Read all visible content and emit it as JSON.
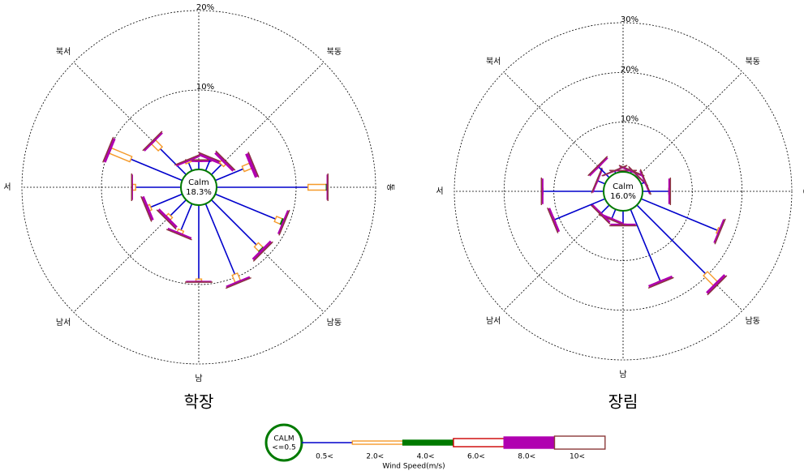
{
  "chart_data": [
    {
      "type": "windrose",
      "title": "학장",
      "calm": {
        "label": "Calm",
        "value": 18.3,
        "value_label": "18.3%"
      },
      "rlim": [
        0,
        20
      ],
      "rticks": [
        {
          "value": 10,
          "label": "10%"
        },
        {
          "value": 20,
          "label": "20%"
        }
      ],
      "direction_labels": [
        null,
        "북동",
        "동",
        "남동",
        "남",
        "남서",
        "서",
        "북서"
      ],
      "series": [
        {
          "values": [
            1.0,
            1.5,
            1.8,
            3.8,
            11.5,
            8.2,
            8.0,
            9.6,
            9.3,
            3.6,
            2.8,
            4.3,
            5.7,
            7.0,
            4.6,
            1.1
          ]
        },
        {
          "values": [
            0,
            0,
            0.4,
            1.0,
            2.3,
            0.8,
            0.8,
            1.0,
            0.3,
            0.4,
            0.4,
            0.3,
            0.4,
            2.8,
            1.2,
            0.2
          ]
        },
        {
          "values": [
            0,
            0,
            0,
            0,
            0.1,
            0.2,
            0.1,
            0,
            0,
            0,
            0,
            0,
            0,
            0,
            0,
            0
          ]
        },
        {
          "values": [
            0,
            0,
            0,
            0,
            0,
            0,
            0,
            0,
            0,
            0,
            0,
            0,
            0,
            0,
            0,
            0
          ]
        },
        {
          "values": [
            0.2,
            0.3,
            0.3,
            0.4,
            0.1,
            0.2,
            0.3,
            0.2,
            0.1,
            0.2,
            0.3,
            0.3,
            0.1,
            0.3,
            0.2,
            0.2
          ]
        },
        {
          "values": [
            0,
            0,
            0,
            0,
            0,
            0,
            0,
            0,
            0,
            0,
            0,
            0,
            0,
            0,
            0,
            0
          ]
        }
      ]
    },
    {
      "type": "windrose",
      "title": "장림",
      "calm": {
        "label": "Calm",
        "value": 16.0,
        "value_label": "16.0%"
      },
      "rlim": [
        0,
        30
      ],
      "rticks": [
        {
          "value": 10,
          "label": "10%"
        },
        {
          "value": 20,
          "label": "20%"
        },
        {
          "value": 30,
          "label": "30%"
        }
      ],
      "direction_labels": [
        null,
        "북동",
        "동",
        "남동",
        "남",
        "남서",
        "서",
        "북서"
      ],
      "series": [
        {
          "values": [
            0.2,
            0.4,
            0.3,
            0.8,
            5.3,
            16.6,
            19.5,
            15.6,
            2.7,
            2.0,
            2.3,
            11.0,
            12.2,
            1.6,
            3.0,
            0.5
          ]
        },
        {
          "values": [
            0,
            0,
            0,
            0,
            0,
            0.3,
            2.8,
            0,
            0,
            0,
            0,
            0,
            0,
            0,
            0,
            0
          ]
        },
        {
          "values": [
            0,
            0,
            0,
            0,
            0,
            0,
            0,
            0,
            0,
            0,
            0,
            0,
            0,
            0,
            0,
            0
          ]
        },
        {
          "values": [
            0,
            0,
            0,
            0,
            0,
            0,
            0,
            0,
            0,
            0,
            0,
            0,
            0,
            0,
            0,
            0
          ]
        },
        {
          "values": [
            0.1,
            0.2,
            0.1,
            0.2,
            0.3,
            0.3,
            0.5,
            0.4,
            0.3,
            0.3,
            0.3,
            0.4,
            0.3,
            0.2,
            0.3,
            0.1
          ]
        },
        {
          "values": [
            0,
            0,
            0,
            0,
            0,
            0,
            0,
            0,
            0,
            0,
            0,
            0,
            0,
            0,
            0,
            0
          ]
        }
      ]
    }
  ],
  "legend": {
    "calm_label": "CALM",
    "calm_threshold": "<=0.5",
    "title": "Wind Speed(m/s)",
    "classes": [
      {
        "name": "0.5<",
        "color": "#0000cc"
      },
      {
        "name": "2.0<",
        "color": "#f59a2a"
      },
      {
        "name": "4.0<",
        "color": "#007a00"
      },
      {
        "name": "6.0<",
        "color": "#cc0000"
      },
      {
        "name": "8.0<",
        "color": "#b000b0"
      },
      {
        "name": "10<",
        "color": "#8b3a3a"
      }
    ]
  }
}
